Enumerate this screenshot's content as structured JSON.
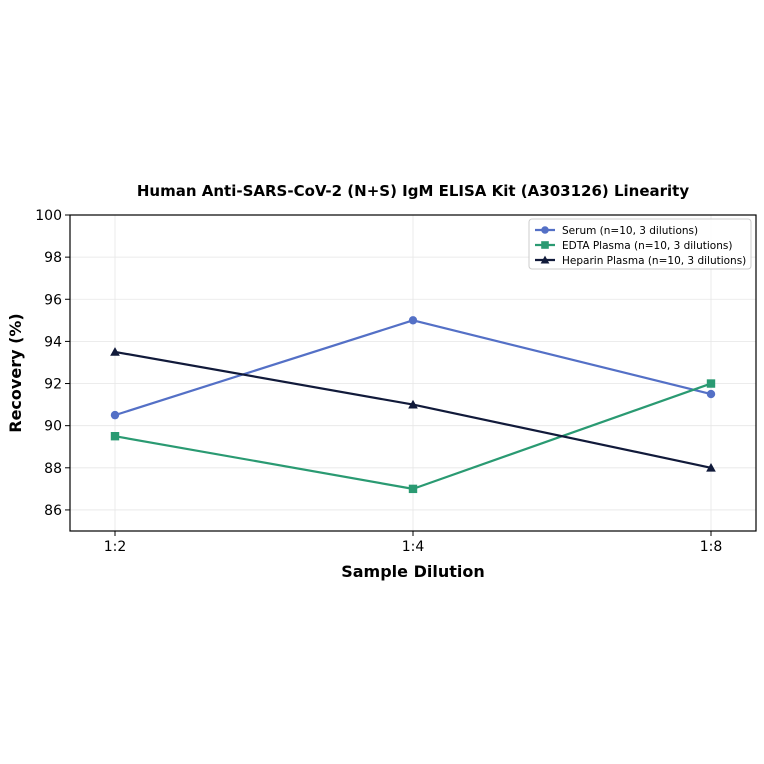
{
  "chart_data": {
    "type": "line",
    "title": "Human Anti-SARS-CoV-2 (N+S) IgM ELISA Kit (A303126) Linearity",
    "xlabel": "Sample Dilution",
    "ylabel": "Recovery (%)",
    "categories": [
      "1:2",
      "1:4",
      "1:8"
    ],
    "ylim": [
      85,
      100
    ],
    "yticks": [
      86,
      88,
      90,
      92,
      94,
      96,
      98,
      100
    ],
    "grid": true,
    "legend_position": "top-right",
    "series": [
      {
        "name": "Serum (n=10, 3 dilutions)",
        "values": [
          90.5,
          95,
          91.5
        ],
        "color": "#5470c6",
        "marker": "circle"
      },
      {
        "name": "EDTA Plasma (n=10, 3 dilutions)",
        "values": [
          89.5,
          87,
          92
        ],
        "color": "#2a9a72",
        "marker": "square"
      },
      {
        "name": "Heparin Plasma (n=10, 3 dilutions)",
        "values": [
          93.5,
          91,
          88
        ],
        "color": "#111a3a",
        "marker": "triangle"
      }
    ]
  }
}
